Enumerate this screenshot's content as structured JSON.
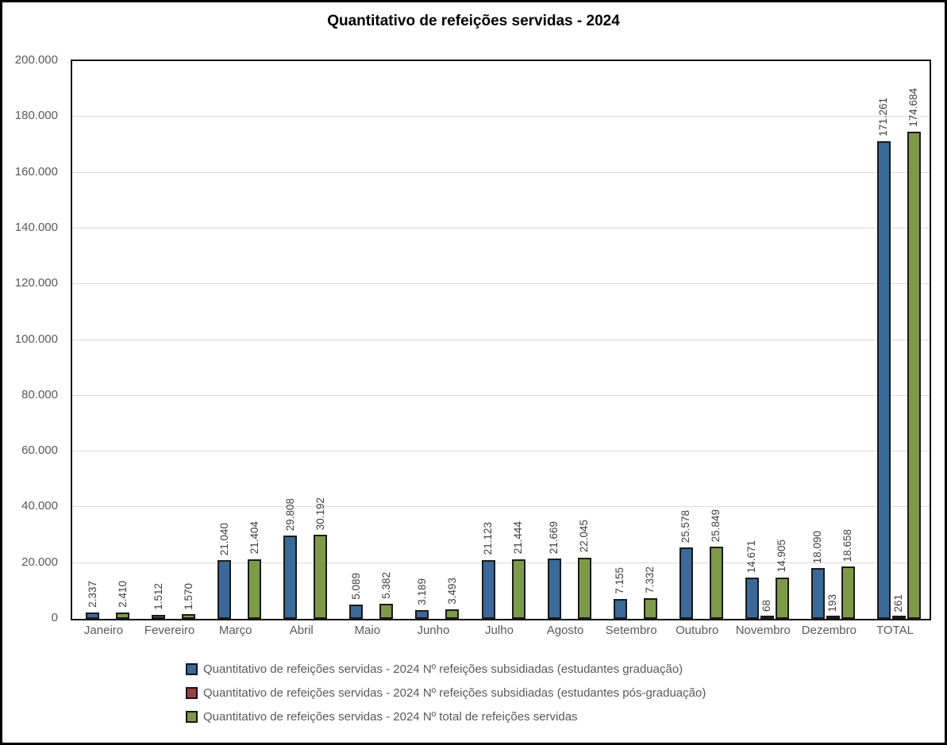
{
  "title": "Quantitativo de refeições servidas - 2024",
  "chart_data": {
    "type": "bar",
    "title": "Quantitativo de refeições servidas - 2024",
    "xlabel": "",
    "ylabel": "",
    "ylim": [
      0,
      200000
    ],
    "ytick_step": 20000,
    "yticks": [
      "0",
      "20.000",
      "40.000",
      "60.000",
      "80.000",
      "100.000",
      "120.000",
      "140.000",
      "160.000",
      "180.000",
      "200.000"
    ],
    "grid": true,
    "legend_position": "bottom",
    "categories": [
      "Janeiro",
      "Fevereiro",
      "Março",
      "Abril",
      "Maio",
      "Junho",
      "Julho",
      "Agosto",
      "Setembro",
      "Outubro",
      "Novembro",
      "Dezembro",
      "TOTAL"
    ],
    "series": [
      {
        "name": "Quantitativo de refeições servidas - 2024 Nº refeições subsidiadas (estudantes graduação)",
        "color": "#3a699b",
        "values": [
          2337,
          1512,
          21040,
          29808,
          5089,
          3189,
          21123,
          21669,
          7155,
          25578,
          14671,
          18090,
          171261
        ],
        "labels": [
          "2.337",
          "1.512",
          "21.040",
          "29.808",
          "5.089",
          "3.189",
          "21.123",
          "21.669",
          "7.155",
          "25.578",
          "14.671",
          "18.090",
          "171.261"
        ]
      },
      {
        "name": "Quantitativo de refeições servidas - 2024 Nº refeições subsidiadas (estudantes pós-graduação)",
        "color": "#9d4045",
        "values": [
          null,
          null,
          null,
          null,
          null,
          null,
          null,
          null,
          null,
          null,
          68,
          193,
          261
        ],
        "labels": [
          "",
          "",
          "",
          "",
          "",
          "",
          "",
          "",
          "",
          "",
          "68",
          "193",
          "261"
        ]
      },
      {
        "name": "Quantitativo de refeições servidas - 2024 Nº total de refeições servidas",
        "color": "#7d9b47",
        "values": [
          2410,
          1570,
          21404,
          30192,
          5382,
          3493,
          21444,
          22045,
          7332,
          25849,
          14905,
          18658,
          174684
        ],
        "labels": [
          "2.410",
          "1.570",
          "21.404",
          "30.192",
          "5.382",
          "3.493",
          "21.444",
          "22.045",
          "7.332",
          "25.849",
          "14.905",
          "18.658",
          "174.684"
        ]
      }
    ]
  }
}
